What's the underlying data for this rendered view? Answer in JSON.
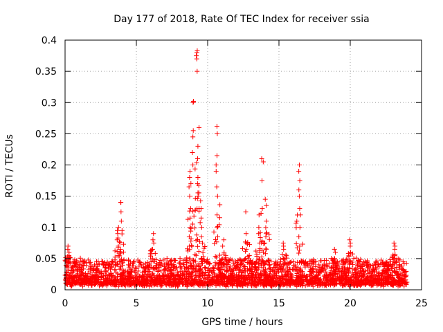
{
  "chart_data": {
    "type": "scatter",
    "title": "Day 177 of 2018, Rate Of TEC Index for receiver ssia",
    "xlabel": "GPS time / hours",
    "ylabel": "ROTI / TECUs",
    "xlim": [
      0,
      25
    ],
    "ylim": [
      0,
      0.4
    ],
    "x_ticks": [
      0,
      5,
      10,
      15,
      20,
      25
    ],
    "x_tick_labels": [
      "0",
      "5",
      "10",
      "15",
      "20",
      "25"
    ],
    "y_ticks": [
      0,
      0.05,
      0.1,
      0.15,
      0.2,
      0.25,
      0.3,
      0.35,
      0.4
    ],
    "y_tick_labels": [
      "0",
      "0.05",
      "0.1",
      "0.15",
      "0.2",
      "0.25",
      "0.3",
      "0.35",
      "0.4"
    ],
    "grid": true,
    "marker": "+",
    "marker_color": "#ff0000",
    "series": [
      {
        "name": "ROTI",
        "description": "dense background band ~0.005-0.05 over 0-24 h",
        "baseline": {
          "x_start": 0.0,
          "x_end": 24.0,
          "y_low": 0.005,
          "y_high": 0.045
        },
        "peaks": [
          {
            "x": 0.25,
            "y": [
              0.055,
              0.06,
              0.065,
              0.07
            ]
          },
          {
            "x": 3.7,
            "y": [
              0.07,
              0.08,
              0.09,
              0.095,
              0.1
            ]
          },
          {
            "x": 3.95,
            "y": [
              0.095,
              0.11,
              0.125,
              0.14,
              0.14
            ]
          },
          {
            "x": 6.2,
            "y": [
              0.065,
              0.075,
              0.08,
              0.09
            ]
          },
          {
            "x": 8.75,
            "y": [
              0.07,
              0.085,
              0.1,
              0.115,
              0.13,
              0.15,
              0.165,
              0.18,
              0.19
            ]
          },
          {
            "x": 8.95,
            "y": [
              0.2,
              0.22,
              0.245,
              0.255,
              0.3,
              0.302
            ]
          },
          {
            "x": 9.25,
            "y": [
              0.35,
              0.37,
              0.375,
              0.38,
              0.383
            ]
          },
          {
            "x": 9.35,
            "y": [
              0.13,
              0.15,
              0.17,
              0.18,
              0.21,
              0.23,
              0.26
            ]
          },
          {
            "x": 9.6,
            "y": [
              0.075,
              0.085,
              0.1,
              0.115,
              0.13
            ]
          },
          {
            "x": 10.65,
            "y": [
              0.085,
              0.1,
              0.12,
              0.15,
              0.165,
              0.19,
              0.2,
              0.215,
              0.25,
              0.262
            ]
          },
          {
            "x": 11.1,
            "y": [
              0.06,
              0.07,
              0.08
            ]
          },
          {
            "x": 12.7,
            "y": [
              0.065,
              0.075,
              0.09,
              0.125
            ]
          },
          {
            "x": 13.6,
            "y": [
              0.06,
              0.075,
              0.09,
              0.1,
              0.12
            ]
          },
          {
            "x": 13.85,
            "y": [
              0.13,
              0.175,
              0.205,
              0.21
            ]
          },
          {
            "x": 14.1,
            "y": [
              0.065,
              0.09,
              0.11,
              0.135,
              0.145
            ]
          },
          {
            "x": 15.3,
            "y": [
              0.065,
              0.07,
              0.075
            ]
          },
          {
            "x": 16.45,
            "y": [
              0.07,
              0.085,
              0.1,
              0.12,
              0.13,
              0.15,
              0.16,
              0.175,
              0.19,
              0.2
            ]
          },
          {
            "x": 18.9,
            "y": [
              0.05,
              0.06,
              0.065
            ]
          },
          {
            "x": 20.0,
            "y": [
              0.06,
              0.07,
              0.075,
              0.08
            ]
          },
          {
            "x": 23.1,
            "y": [
              0.055,
              0.065,
              0.07,
              0.075
            ]
          }
        ]
      }
    ]
  }
}
